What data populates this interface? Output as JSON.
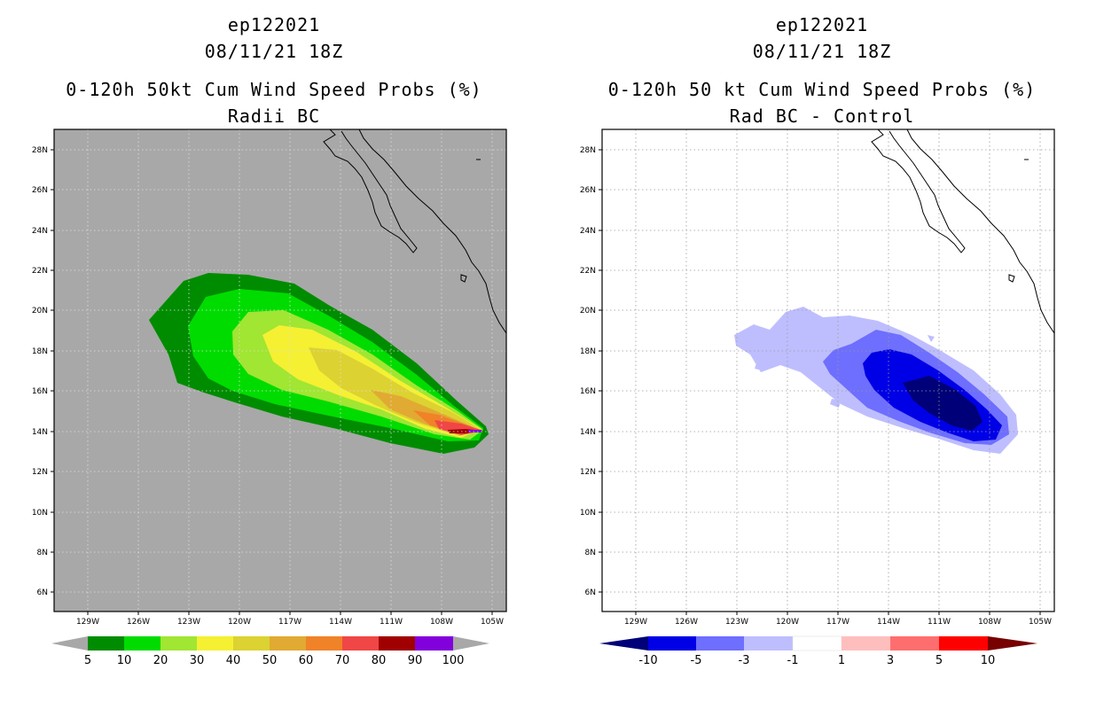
{
  "left": {
    "storm_id": "ep122021",
    "datetime": "08/11/21 18Z",
    "product": "0-120h 50kt Cum Wind Speed Probs (%)",
    "subtitle": "Radii BC",
    "background_color": "#a8a8a8",
    "colorbar": {
      "labels": [
        "5",
        "10",
        "20",
        "30",
        "40",
        "50",
        "60",
        "70",
        "80",
        "90",
        "100"
      ],
      "colors": [
        "#008c00",
        "#00dc00",
        "#a0e632",
        "#f5f032",
        "#dcd232",
        "#e1aa32",
        "#f08228",
        "#f04646",
        "#a00000",
        "#8200dc"
      ],
      "end_color": "#a8a8a8"
    }
  },
  "right": {
    "storm_id": "ep122021",
    "datetime": "08/11/21 18Z",
    "product": "0-120h 50 kt Cum Wind Speed Probs (%)",
    "subtitle": "Rad BC - Control",
    "background_color": "#ffffff",
    "colorbar": {
      "labels": [
        "-10",
        "-5",
        "-3",
        "-1",
        "1",
        "3",
        "5",
        "10"
      ],
      "colors": [
        "#0000e6",
        "#6e6eff",
        "#bebeff",
        "#ffffff",
        "#ffbebe",
        "#ff6e6e",
        "#ff0000"
      ],
      "low_end_color": "#000078",
      "high_end_color": "#780000"
    }
  },
  "map": {
    "lat_labels": [
      "28N",
      "26N",
      "24N",
      "22N",
      "20N",
      "18N",
      "16N",
      "14N",
      "12N",
      "10N",
      "8N",
      "6N"
    ],
    "lon_labels": [
      "129W",
      "126W",
      "123W",
      "120W",
      "117W",
      "114W",
      "111W",
      "108W",
      "105W"
    ]
  },
  "legend_icons": [
    "left-triangle-icon",
    "right-triangle-icon"
  ]
}
